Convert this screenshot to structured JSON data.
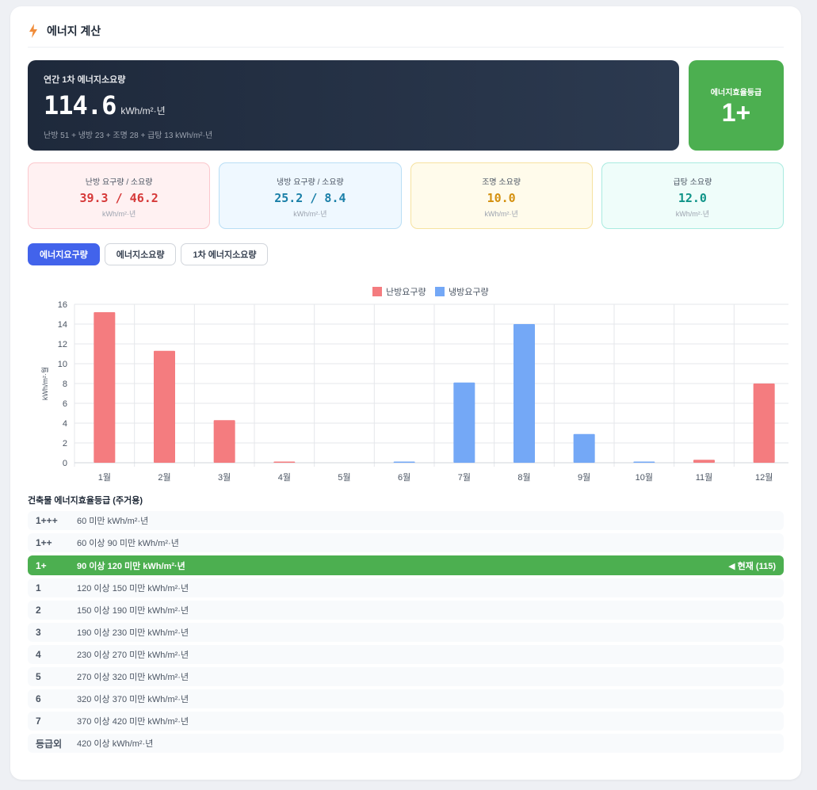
{
  "header": {
    "title": "에너지 계산",
    "icon": "bolt-icon"
  },
  "hero": {
    "label": "연간 1차 에너지소요량",
    "value": "114.6",
    "unit": "kWh/m²·년",
    "breakdown": "난방 51 + 냉방 23 + 조명 28 + 급탕 13 kWh/m²·년"
  },
  "grade": {
    "label": "에너지효율등급",
    "value": "1+",
    "color": "#4caf50"
  },
  "stats": [
    {
      "label": "난방 요구량 / 소요량",
      "value": "39.3 / 46.2",
      "unit": "kWh/m²·년",
      "color": "#d63939",
      "bg": "#fff1f2",
      "border": "#fbc8cd"
    },
    {
      "label": "냉방 요구량 / 소요량",
      "value": "25.2 / 8.4",
      "unit": "kWh/m²·년",
      "color": "#1a7fa8",
      "bg": "#eff8ff",
      "border": "#b9def5"
    },
    {
      "label": "조명 소요량",
      "value": "10.0",
      "unit": "kWh/m²·년",
      "color": "#d4900f",
      "bg": "#fffbeb",
      "border": "#f6e2a0"
    },
    {
      "label": "급탕 소요량",
      "value": "12.0",
      "unit": "kWh/m²·년",
      "color": "#0f9488",
      "bg": "#effdfa",
      "border": "#a9ebe0"
    }
  ],
  "tabs": [
    "에너지요구량",
    "에너지소요량",
    "1차 에너지소요량"
  ],
  "chart_data": {
    "type": "bar",
    "categories": [
      "1월",
      "2월",
      "3월",
      "4월",
      "5월",
      "6월",
      "7월",
      "8월",
      "9월",
      "10월",
      "11월",
      "12월"
    ],
    "series": [
      {
        "name": "난방요구량",
        "color": "#f47c7f",
        "values": [
          15.2,
          11.3,
          4.3,
          0.1,
          0,
          0,
          0,
          0,
          0,
          0,
          0.3,
          8.0
        ]
      },
      {
        "name": "냉방요구량",
        "color": "#74a8f6",
        "values": [
          0,
          0,
          0,
          0,
          0,
          0.1,
          8.1,
          14.0,
          2.9,
          0.05,
          0,
          0
        ]
      }
    ],
    "ylabel": "kWh/m²·월",
    "ylim": [
      0,
      16
    ],
    "yticks": [
      0,
      2,
      4,
      6,
      8,
      10,
      12,
      14,
      16
    ],
    "grid": true,
    "legend": "top-center"
  },
  "grades": {
    "title": "건축물 에너지효율등급 (주거용)",
    "current_marker": "◀ 현재 (115)",
    "rows": [
      {
        "name": "1+++",
        "range": "60 미만 kWh/m²·년"
      },
      {
        "name": "1++",
        "range": "60 이상 90 미만 kWh/m²·년"
      },
      {
        "name": "1+",
        "range": "90 이상 120 미만 kWh/m²·년",
        "current": true
      },
      {
        "name": "1",
        "range": "120 이상 150 미만 kWh/m²·년"
      },
      {
        "name": "2",
        "range": "150 이상 190 미만 kWh/m²·년"
      },
      {
        "name": "3",
        "range": "190 이상 230 미만 kWh/m²·년"
      },
      {
        "name": "4",
        "range": "230 이상 270 미만 kWh/m²·년"
      },
      {
        "name": "5",
        "range": "270 이상 320 미만 kWh/m²·년"
      },
      {
        "name": "6",
        "range": "320 이상 370 미만 kWh/m²·년"
      },
      {
        "name": "7",
        "range": "370 이상 420 미만 kWh/m²·년"
      },
      {
        "name": "등급외",
        "range": "420 이상 kWh/m²·년"
      }
    ]
  }
}
